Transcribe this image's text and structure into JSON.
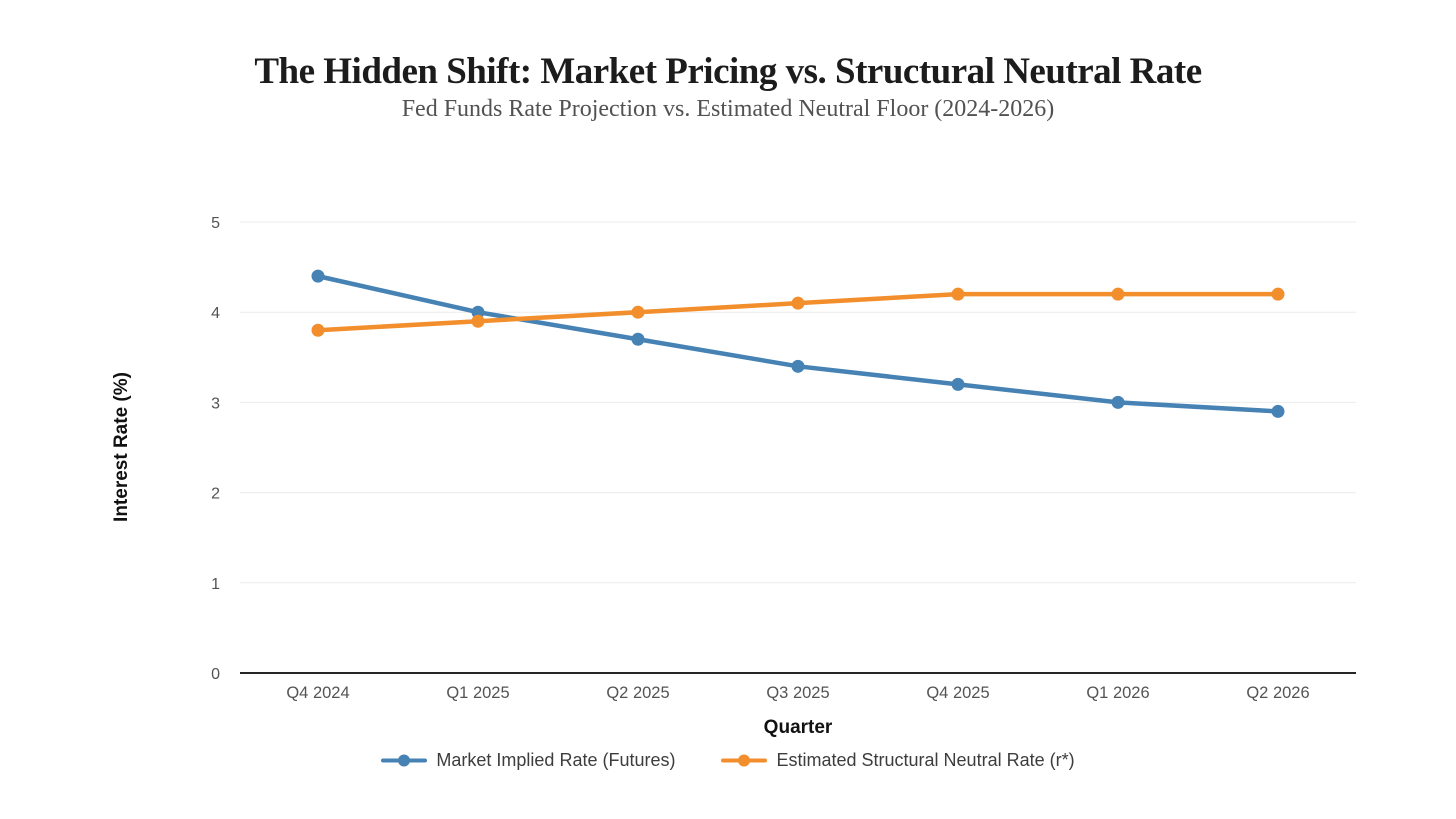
{
  "chart_data": {
    "type": "line",
    "title": "The Hidden Shift: Market Pricing vs. Structural Neutral Rate",
    "subtitle": "Fed Funds Rate Projection vs. Estimated Neutral Floor (2024-2026)",
    "categories": [
      "Q4 2024",
      "Q1 2025",
      "Q2 2025",
      "Q3 2025",
      "Q4 2025",
      "Q1 2026",
      "Q2 2026"
    ],
    "series": [
      {
        "name": "Market Implied Rate (Futures)",
        "color": "#4682B4",
        "values": [
          4.4,
          4.0,
          3.7,
          3.4,
          3.2,
          3.0,
          2.9
        ]
      },
      {
        "name": "Estimated Structural Neutral Rate (r*)",
        "color": "#F28E2C",
        "values": [
          3.8,
          3.9,
          4.0,
          4.1,
          4.2,
          4.2,
          4.2
        ]
      }
    ],
    "xlabel": "Quarter",
    "ylabel": "Interest Rate (%)",
    "ylim": [
      0,
      5
    ],
    "yticks": [
      0,
      1,
      2,
      3,
      4,
      5
    ],
    "grid": "horizontal",
    "legend_position": "bottom"
  },
  "colors": {
    "background": "#ffffff",
    "grid": "#ebebeb",
    "axis_line": "#262626",
    "tick_label": "#545454",
    "title": "#1c1c1c",
    "subtitle": "#525252",
    "legend_text": "#3d3d3d"
  }
}
